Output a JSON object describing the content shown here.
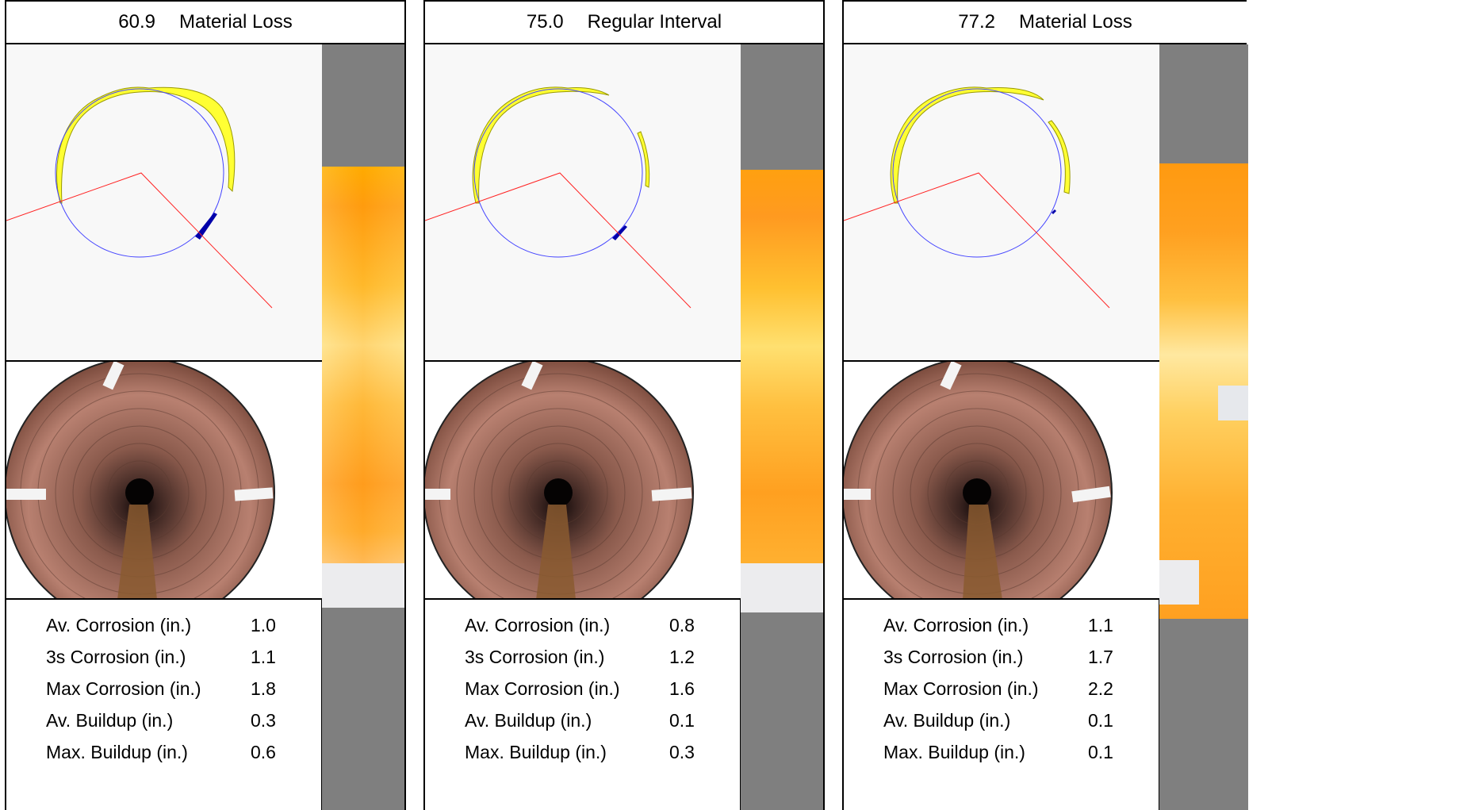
{
  "panels": [
    {
      "position": "60.9",
      "event": "Material Loss",
      "stats": [
        {
          "label": "Av. Corrosion (in.)",
          "value": "1.0"
        },
        {
          "label": "3s Corrosion (in.)",
          "value": "1.1"
        },
        {
          "label": "Max Corrosion (in.)",
          "value": "1.8"
        },
        {
          "label": "Av. Buildup (in.)",
          "value": "0.3"
        },
        {
          "label": "Max. Buildup (in.)",
          "value": "0.6"
        }
      ]
    },
    {
      "position": "75.0",
      "event": "Regular Interval",
      "stats": [
        {
          "label": "Av. Corrosion (in.)",
          "value": "0.8"
        },
        {
          "label": "3s Corrosion (in.)",
          "value": "1.2"
        },
        {
          "label": "Max Corrosion (in.)",
          "value": "1.6"
        },
        {
          "label": "Av. Buildup (in.)",
          "value": "0.1"
        },
        {
          "label": "Max. Buildup (in.)",
          "value": "0.3"
        }
      ]
    },
    {
      "position": "77.2",
      "event": "Material Loss",
      "stats": [
        {
          "label": "Av. Corrosion (in.)",
          "value": "1.1"
        },
        {
          "label": "3s Corrosion (in.)",
          "value": "1.7"
        },
        {
          "label": "Max Corrosion (in.)",
          "value": "2.2"
        },
        {
          "label": "Av. Buildup (in.)",
          "value": "0.1"
        },
        {
          "label": "Max. Buildup (in.)",
          "value": "0.1"
        }
      ]
    }
  ],
  "colors": {
    "nominal_circle": "#4444ff",
    "buildup_fill": "#ffff33",
    "corrosion_fill": "#0000aa",
    "water_line": "#ff2222",
    "profile_bg": "#f8f8f8",
    "unroll_bg": "#7f7f7f",
    "unroll_primary": "#ffb000",
    "unroll_light": "#f0f0f0"
  }
}
